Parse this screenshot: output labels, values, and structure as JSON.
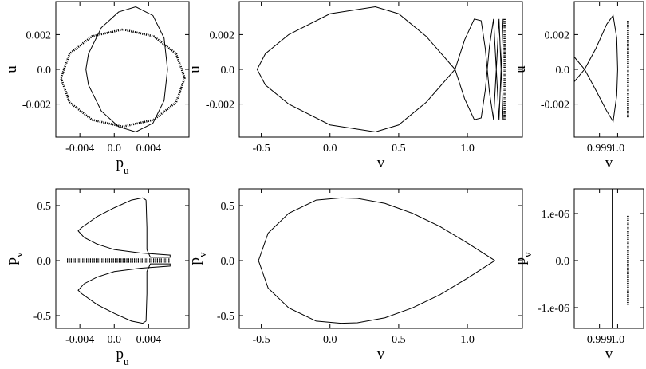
{
  "chart_data": [
    {
      "type": "line",
      "xlabel": {
        "text": "p",
        "sub": "u"
      },
      "ylabel": {
        "text": "u"
      },
      "xlim": [
        -0.0068,
        0.0087
      ],
      "ylim": [
        -0.0039,
        0.0039
      ],
      "xticks": [
        -0.004,
        {
          "value": 0,
          "label": "0.0"
        },
        0.004
      ],
      "yticks": [
        -0.002,
        {
          "value": 0,
          "label": "0.0"
        },
        0.002
      ],
      "series": [
        {
          "color": "#000000",
          "style": "dotted",
          "x": [
            0.0082,
            0.0072,
            0.0046,
            0.001,
            -0.0026,
            -0.0052,
            -0.0062,
            -0.0052,
            -0.0026,
            0.001,
            0.0046,
            0.0072,
            0.0082
          ],
          "values": [
            -0.0005,
            0.0009,
            0.0019,
            0.0023,
            0.0019,
            0.0009,
            -0.0005,
            -0.0019,
            -0.0029,
            -0.0033,
            -0.0029,
            -0.0019,
            -0.0005
          ]
        },
        {
          "color": "#000000",
          "style": "solid",
          "x": [
            0.0062,
            0.0058,
            0.0045,
            0.0025,
            0.0005,
            -0.0015,
            -0.003,
            -0.0033,
            -0.003,
            -0.0015,
            0.0005,
            0.0025,
            0.0045,
            0.0058,
            0.0062
          ],
          "values": [
            0,
            0.0018,
            0.0031,
            0.0036,
            0.0033,
            0.0024,
            0.0009,
            0,
            -0.0009,
            -0.0024,
            -0.0033,
            -0.0036,
            -0.0031,
            -0.0018,
            0
          ]
        }
      ]
    },
    {
      "type": "line",
      "xlabel": {
        "text": "v"
      },
      "ylabel": {
        "text": "u"
      },
      "xlim": [
        -0.66,
        1.4
      ],
      "ylim": [
        -0.0039,
        0.0039
      ],
      "xticks": [
        -0.5,
        {
          "value": 0,
          "label": "0.0"
        },
        0.5,
        {
          "value": 1,
          "label": "1.0"
        }
      ],
      "yticks": [
        -0.002,
        {
          "value": 0,
          "label": "0.0"
        },
        0.002
      ],
      "series": [
        {
          "color": "#000000",
          "style": "solid",
          "x": [
            0.91,
            0.7,
            0.5,
            0.33,
            0.0,
            -0.3,
            -0.47,
            -0.53,
            -0.47,
            -0.3,
            0.0,
            0.33,
            0.5,
            0.7,
            0.91,
            0.98,
            1.05,
            1.1,
            1.13,
            1.16,
            1.19,
            1.21,
            1.23,
            1.245,
            1.26,
            null,
            0.91,
            0.98,
            1.05,
            1.1,
            1.13,
            1.16,
            1.19,
            1.21,
            1.23,
            1.245,
            1.26
          ],
          "values": [
            0,
            0.0019,
            0.0032,
            0.0036,
            0.0032,
            0.002,
            0.0009,
            0,
            -0.0009,
            -0.002,
            -0.0032,
            -0.0036,
            -0.0032,
            -0.0019,
            0,
            0.0017,
            0.0029,
            0.0028,
            0.0012,
            -0.0013,
            -0.0029,
            0,
            0.0029,
            0,
            -0.0029,
            null,
            0,
            -0.0017,
            -0.0029,
            -0.0028,
            -0.0012,
            0.0013,
            0.0029,
            0,
            -0.0029,
            0,
            0.0029
          ]
        },
        {
          "color": "#000000",
          "style": "dotted",
          "x": [
            1.27,
            1.27
          ],
          "values": [
            0.0029,
            -0.0029
          ]
        }
      ]
    },
    {
      "type": "line",
      "xlabel": {
        "text": "v"
      },
      "ylabel": {
        "text": "u"
      },
      "xlim": [
        0.99761,
        1.00143
      ],
      "ylim": [
        -0.0039,
        0.0039
      ],
      "xticks": [
        0.999,
        {
          "value": 1,
          "label": "1.0"
        }
      ],
      "yticks": [
        -0.002,
        {
          "value": 0,
          "label": "0.0"
        },
        0.002
      ],
      "series": [
        {
          "color": "#000000",
          "style": "solid",
          "x": [
            0.99762,
            0.99818,
            0.9988,
            0.9994,
            0.99975,
            0.99995,
            1.0,
            0.99995,
            0.99975,
            0.9994,
            0.9988,
            0.99818,
            0.99762
          ],
          "values": [
            0.0007,
            0,
            -0.0012,
            -0.0024,
            -0.003,
            -0.0015,
            0,
            0.0018,
            0.0031,
            0.0026,
            0.0012,
            0,
            -0.0007
          ]
        },
        {
          "color": "#000000",
          "style": "dotted",
          "x": [
            1.00057,
            1.00057
          ],
          "values": [
            0.0028,
            -0.0028
          ]
        }
      ]
    },
    {
      "type": "line",
      "xlabel": {
        "text": "p",
        "sub": "u"
      },
      "ylabel": {
        "text": "p",
        "sub": "v"
      },
      "xlim": [
        -0.0068,
        0.0087
      ],
      "ylim": [
        -0.616,
        0.652
      ],
      "xticks": [
        -0.004,
        {
          "value": 0,
          "label": "0.0"
        },
        0.004
      ],
      "yticks": [
        -0.5,
        {
          "value": 0,
          "label": "0.0"
        },
        0.5
      ],
      "series": [
        {
          "color": "#000000",
          "style": "solid",
          "x": [
            0.0037,
            0.0033,
            0.002,
            0.0,
            -0.002,
            -0.0038,
            -0.0042,
            -0.0035,
            -0.002,
            0.0,
            0.003,
            0.0065,
            0.0065,
            0.0042,
            0.0038,
            0.0038,
            0.0037,
            null,
            0.0037,
            0.0033,
            0.002,
            0.0,
            -0.002,
            -0.0038,
            -0.0042,
            -0.0035,
            -0.002,
            0.0,
            0.003,
            0.0065,
            0.0065,
            0.0042,
            0.0038,
            0.0038,
            0.0037
          ],
          "values": [
            0.55,
            0.57,
            0.55,
            0.48,
            0.4,
            0.3,
            0.27,
            0.21,
            0.15,
            0.1,
            0.07,
            0.05,
            0.03,
            0.03,
            0.1,
            0.3,
            0.55,
            null,
            -0.55,
            -0.57,
            -0.55,
            -0.48,
            -0.4,
            -0.3,
            -0.27,
            -0.21,
            -0.15,
            -0.1,
            -0.07,
            -0.05,
            -0.03,
            -0.03,
            -0.1,
            -0.3,
            -0.55
          ]
        },
        {
          "color": "#000000",
          "style": "dotted",
          "x": [
            -0.0055,
            0.0065,
            null,
            -0.0055,
            0.0065
          ],
          "values": [
            0.01,
            0.01,
            null,
            -0.01,
            -0.01
          ]
        }
      ]
    },
    {
      "type": "line",
      "xlabel": {
        "text": "v"
      },
      "ylabel": {
        "text": "p",
        "sub": "v"
      },
      "xlim": [
        -0.66,
        1.4
      ],
      "ylim": [
        -0.616,
        0.652
      ],
      "xticks": [
        -0.5,
        {
          "value": 0,
          "label": "0.0"
        },
        0.5,
        {
          "value": 1,
          "label": "1.0"
        }
      ],
      "yticks": [
        -0.5,
        {
          "value": 0,
          "label": "0.0"
        },
        0.5
      ],
      "series": [
        {
          "color": "#000000",
          "style": "solid",
          "x": [
            1.2,
            1.0,
            0.8,
            0.6,
            0.4,
            0.2,
            0.08,
            -0.1,
            -0.3,
            -0.45,
            -0.52,
            -0.45,
            -0.3,
            -0.1,
            0.08,
            0.2,
            0.4,
            0.6,
            0.8,
            1.0,
            1.2
          ],
          "values": [
            0,
            0.16,
            0.31,
            0.43,
            0.52,
            0.565,
            0.57,
            0.55,
            0.43,
            0.25,
            0,
            -0.25,
            -0.43,
            -0.55,
            -0.57,
            -0.565,
            -0.52,
            -0.43,
            -0.31,
            -0.16,
            0
          ]
        }
      ]
    },
    {
      "type": "line",
      "xlabel": {
        "text": "v"
      },
      "ylabel": {
        "text": "p",
        "sub": "v"
      },
      "xlim": [
        0.99761,
        1.00143
      ],
      "ylim": [
        -1.441e-06,
        1.525e-06
      ],
      "xticks": [
        0.999,
        {
          "value": 1,
          "label": "1.0"
        }
      ],
      "yticks": [
        {
          "value": -1e-06,
          "label": "-1.e-06"
        },
        {
          "value": 0,
          "label": "0.0"
        },
        {
          "value": 1e-06,
          "label": "1.e-06"
        }
      ],
      "series": [
        {
          "color": "#000000",
          "style": "solid",
          "x": [
            0.9997,
            0.9997
          ],
          "values": [
            1.525e-06,
            -1.441e-06
          ]
        },
        {
          "color": "#000000",
          "style": "dotted",
          "x": [
            1.00057,
            1.00057
          ],
          "values": [
            9.5e-07,
            -9.5e-07
          ]
        }
      ]
    }
  ]
}
